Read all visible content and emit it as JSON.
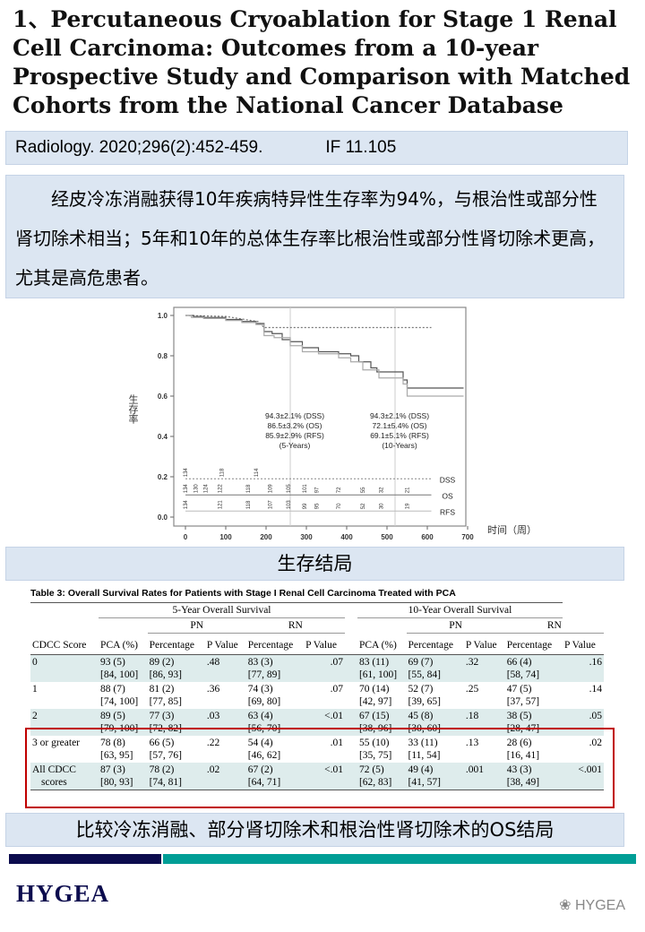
{
  "title": "1、Percutaneous Cryoablation for Stage 1 Renal Cell Carcinoma: Outcomes from a 10-year Prospective Study and Comparison with Matched Cohorts from the National Cancer Database",
  "citation": {
    "journal": "Radiology. 2020;296(2):452-459.",
    "impact_factor": "IF 11.105"
  },
  "summary": "经皮冷冻消融获得10年疾病特异性生存率为94%，与根治性或部分性肾切除术相当；5年和10年的总体生存率比根治性或部分性肾切除术更高，尤其是高危患者。",
  "chart_data": {
    "type": "line",
    "ylabel": "生存率",
    "xlabel": "时间（周）",
    "xlim": [
      0,
      700
    ],
    "ylim": [
      0,
      1
    ],
    "xticks": [
      0,
      100,
      200,
      300,
      400,
      500,
      600,
      700
    ],
    "yticks": [
      "0.0",
      "0.2",
      "0.4",
      "0.6",
      "0.8",
      "1.0"
    ],
    "reference_lines_x": [
      260,
      520
    ],
    "series": [
      {
        "name": "DSS",
        "style": "dashed",
        "color": "#777777",
        "points": [
          [
            0,
            1
          ],
          [
            100,
            0.995
          ],
          [
            180,
            0.97
          ],
          [
            195,
            0.94
          ],
          [
            610,
            0.94
          ]
        ]
      },
      {
        "name": "OS",
        "style": "step",
        "color": "#555555",
        "points": [
          [
            0,
            1
          ],
          [
            20,
            0.995
          ],
          [
            45,
            0.99
          ],
          [
            100,
            0.98
          ],
          [
            140,
            0.97
          ],
          [
            175,
            0.96
          ],
          [
            195,
            0.92
          ],
          [
            215,
            0.91
          ],
          [
            240,
            0.88
          ],
          [
            260,
            0.87
          ],
          [
            290,
            0.84
          ],
          [
            330,
            0.82
          ],
          [
            380,
            0.81
          ],
          [
            410,
            0.8
          ],
          [
            430,
            0.77
          ],
          [
            460,
            0.74
          ],
          [
            475,
            0.72
          ],
          [
            540,
            0.68
          ],
          [
            550,
            0.64
          ],
          [
            690,
            0.64
          ]
        ]
      },
      {
        "name": "RFS",
        "style": "step",
        "color": "#aaaaaa",
        "points": [
          [
            0,
            1
          ],
          [
            15,
            0.99
          ],
          [
            45,
            0.985
          ],
          [
            100,
            0.975
          ],
          [
            140,
            0.965
          ],
          [
            175,
            0.955
          ],
          [
            195,
            0.9
          ],
          [
            220,
            0.89
          ],
          [
            260,
            0.85
          ],
          [
            290,
            0.82
          ],
          [
            330,
            0.81
          ],
          [
            380,
            0.79
          ],
          [
            410,
            0.77
          ],
          [
            440,
            0.73
          ],
          [
            480,
            0.69
          ],
          [
            540,
            0.66
          ],
          [
            550,
            0.6
          ],
          [
            690,
            0.6
          ]
        ]
      }
    ],
    "annotations": [
      {
        "x": 260,
        "lines": [
          "94.3±2.1% (DSS)",
          "86.5±3.2% (OS)",
          "85.9±2.9% (RFS)",
          "(5-Years)"
        ]
      },
      {
        "x": 520,
        "lines": [
          "94.3±2.1% (DSS)",
          "72.1±5.4% (OS)",
          "69.1±5.1% (RFS)",
          "(10-Years)"
        ]
      }
    ],
    "at_risk": [
      {
        "name": "DSS",
        "y": 0.19,
        "values": [
          [
            0,
            134
          ],
          [
            90,
            118
          ],
          [
            175,
            114
          ]
        ]
      },
      {
        "name": "OS",
        "y": 0.11,
        "values": [
          [
            0,
            134
          ],
          [
            25,
            130
          ],
          [
            50,
            124
          ],
          [
            85,
            122
          ],
          [
            155,
            118
          ],
          [
            210,
            109
          ],
          [
            255,
            105
          ],
          [
            295,
            101
          ],
          [
            325,
            97
          ],
          [
            380,
            72
          ],
          [
            440,
            55
          ],
          [
            485,
            32
          ],
          [
            550,
            21
          ]
        ]
      },
      {
        "name": "RFS",
        "y": 0.03,
        "values": [
          [
            0,
            134
          ],
          [
            85,
            121
          ],
          [
            155,
            118
          ],
          [
            210,
            107
          ],
          [
            255,
            103
          ],
          [
            295,
            99
          ],
          [
            325,
            95
          ],
          [
            380,
            70
          ],
          [
            440,
            52
          ],
          [
            485,
            30
          ],
          [
            550,
            19
          ]
        ]
      }
    ]
  },
  "section_label": "生存结局",
  "table": {
    "caption": "Table 3: Overall Survival Rates for Patients with Stage I Renal Cell Carcinoma Treated with PCA",
    "group_headers": [
      "5-Year Overall Survival",
      "10-Year Overall Survival"
    ],
    "sub_headers": [
      "PN",
      "RN",
      "PN",
      "RN"
    ],
    "columns": [
      "CDCC Score",
      "PCA (%)",
      "Percentage",
      "P Value",
      "Percentage",
      "P Value",
      "PCA (%)",
      "Percentage",
      "P Value",
      "Percentage",
      "P Value"
    ],
    "rows": [
      [
        [
          "0",
          ""
        ],
        [
          "93 (5)",
          "[84, 100]"
        ],
        [
          "89 (2)",
          "[86, 93]"
        ],
        [
          ".48",
          ""
        ],
        [
          "83 (3)",
          "[77, 89]"
        ],
        [
          ".07",
          ""
        ],
        [
          "83 (11)",
          "[61, 100]"
        ],
        [
          "69 (7)",
          "[55, 84]"
        ],
        [
          ".32",
          ""
        ],
        [
          "66 (4)",
          "[58, 74]"
        ],
        [
          ".16",
          ""
        ]
      ],
      [
        [
          "1",
          ""
        ],
        [
          "88 (7)",
          "[74, 100]"
        ],
        [
          "81 (2)",
          "[77, 85]"
        ],
        [
          ".36",
          ""
        ],
        [
          "74 (3)",
          "[69, 80]"
        ],
        [
          ".07",
          ""
        ],
        [
          "70 (14)",
          "[42, 97]"
        ],
        [
          "52 (7)",
          "[39, 65]"
        ],
        [
          ".25",
          ""
        ],
        [
          "47 (5)",
          "[37, 57]"
        ],
        [
          ".14",
          ""
        ]
      ],
      [
        [
          "2",
          ""
        ],
        [
          "89 (5)",
          "[79, 100]"
        ],
        [
          "77 (3)",
          "[72, 82]"
        ],
        [
          ".03",
          ""
        ],
        [
          "63 (4)",
          "[56, 70]"
        ],
        [
          "<.01",
          ""
        ],
        [
          "67 (15)",
          "[38, 96]"
        ],
        [
          "45 (8)",
          "[30, 60]"
        ],
        [
          ".18",
          ""
        ],
        [
          "38 (5)",
          "[28, 47]"
        ],
        [
          ".05",
          ""
        ]
      ],
      [
        [
          "3 or greater",
          ""
        ],
        [
          "78 (8)",
          "[63, 95]"
        ],
        [
          "66 (5)",
          "[57, 76]"
        ],
        [
          ".22",
          ""
        ],
        [
          "54 (4)",
          "[46, 62]"
        ],
        [
          ".01",
          ""
        ],
        [
          "55 (10)",
          "[35, 75]"
        ],
        [
          "33 (11)",
          "[11, 54]"
        ],
        [
          ".13",
          ""
        ],
        [
          "28 (6)",
          "[16, 41]"
        ],
        [
          ".02",
          ""
        ]
      ],
      [
        [
          "All CDCC",
          "scores"
        ],
        [
          "87 (3)",
          "[80, 93]"
        ],
        [
          "78 (2)",
          "[74, 81]"
        ],
        [
          ".02",
          ""
        ],
        [
          "67 (2)",
          "[64, 71]"
        ],
        [
          "<.01",
          ""
        ],
        [
          "72 (5)",
          "[62, 83]"
        ],
        [
          "49 (4)",
          "[41, 57]"
        ],
        [
          ".001",
          ""
        ],
        [
          "43 (3)",
          "[38, 49]"
        ],
        [
          "<.001",
          ""
        ]
      ]
    ]
  },
  "caption_bottom": "比较冷冻消融、部分肾切除术和根治性肾切除术的OS结局",
  "footer": {
    "logo": "HYGEA",
    "watermark": "HYGEA"
  },
  "colors": {
    "panel": "#dce6f2",
    "highlight_box": "#c00000",
    "stripe_navy": "#0c0c4e",
    "stripe_teal": "#009e96",
    "row_shade": "#deecec"
  }
}
